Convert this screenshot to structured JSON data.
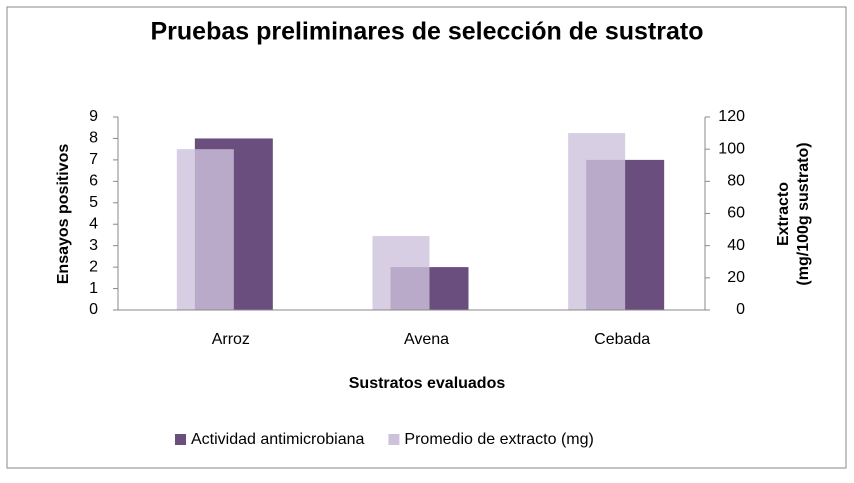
{
  "chart_data": {
    "type": "bar",
    "title": "Pruebas preliminares de selección de sustrato",
    "x_label": "Sustratos evaluados",
    "y_label": "Ensayos positivos",
    "y2_label": [
      "Extracto",
      "(mg/100g sustrato)"
    ],
    "categories": [
      "Arroz",
      "Avena",
      "Cebada"
    ],
    "series": [
      {
        "name": "Actividad antimicrobiana",
        "color": "#6a4e7e",
        "values": [
          8,
          2,
          7
        ]
      },
      {
        "name": "Promedio de extracto (mg)",
        "color": "#cdc2dc",
        "axis": "y2",
        "values": [
          100,
          46,
          110
        ]
      }
    ],
    "ylim": [
      0,
      9
    ],
    "yticks": [
      0,
      1,
      2,
      3,
      4,
      5,
      6,
      7,
      8,
      9
    ],
    "y2lim": [
      0,
      120
    ],
    "y2ticks": [
      0,
      20,
      40,
      60,
      80,
      100,
      120
    ],
    "legend": "bottom"
  }
}
